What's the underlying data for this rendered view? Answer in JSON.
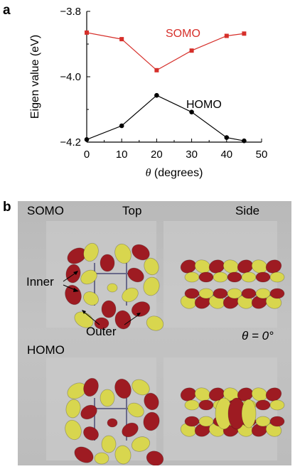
{
  "panel_a": {
    "letter": "a"
  },
  "panel_b": {
    "letter": "b",
    "somo_label": "SOMO",
    "top_label": "Top",
    "side_label": "Side",
    "inner_label": "Inner",
    "outer_label": "Outer",
    "theta_label": "θ = 0°",
    "homo_label": "HOMO",
    "lobe_colors": {
      "red": "#9e1b22",
      "yellow": "#d8d64e",
      "bond": "#6a6a8a"
    }
  },
  "chart_data": {
    "type": "line",
    "xlabel_symbol": "θ",
    "xlabel_rest": " (degrees)",
    "ylabel": "Eigen value (eV)",
    "xlim": [
      0,
      50
    ],
    "ylim": [
      -4.2,
      -3.8
    ],
    "xticks": [
      "0",
      "10",
      "20",
      "30",
      "40",
      "50"
    ],
    "yticks": [
      "−3.8",
      "−4.0",
      "−4.2"
    ],
    "series": [
      {
        "name": "SOMO",
        "color": "#d62f2a",
        "marker": "square",
        "x": [
          0,
          10,
          20,
          30,
          40,
          45
        ],
        "y": [
          -3.865,
          -3.885,
          -3.98,
          -3.92,
          -3.875,
          -3.868
        ]
      },
      {
        "name": "HOMO",
        "color": "#000000",
        "marker": "circle",
        "x": [
          0,
          10,
          20,
          30,
          40,
          45
        ],
        "y": [
          -4.192,
          -4.15,
          -4.057,
          -4.108,
          -4.186,
          -4.196
        ]
      }
    ]
  }
}
